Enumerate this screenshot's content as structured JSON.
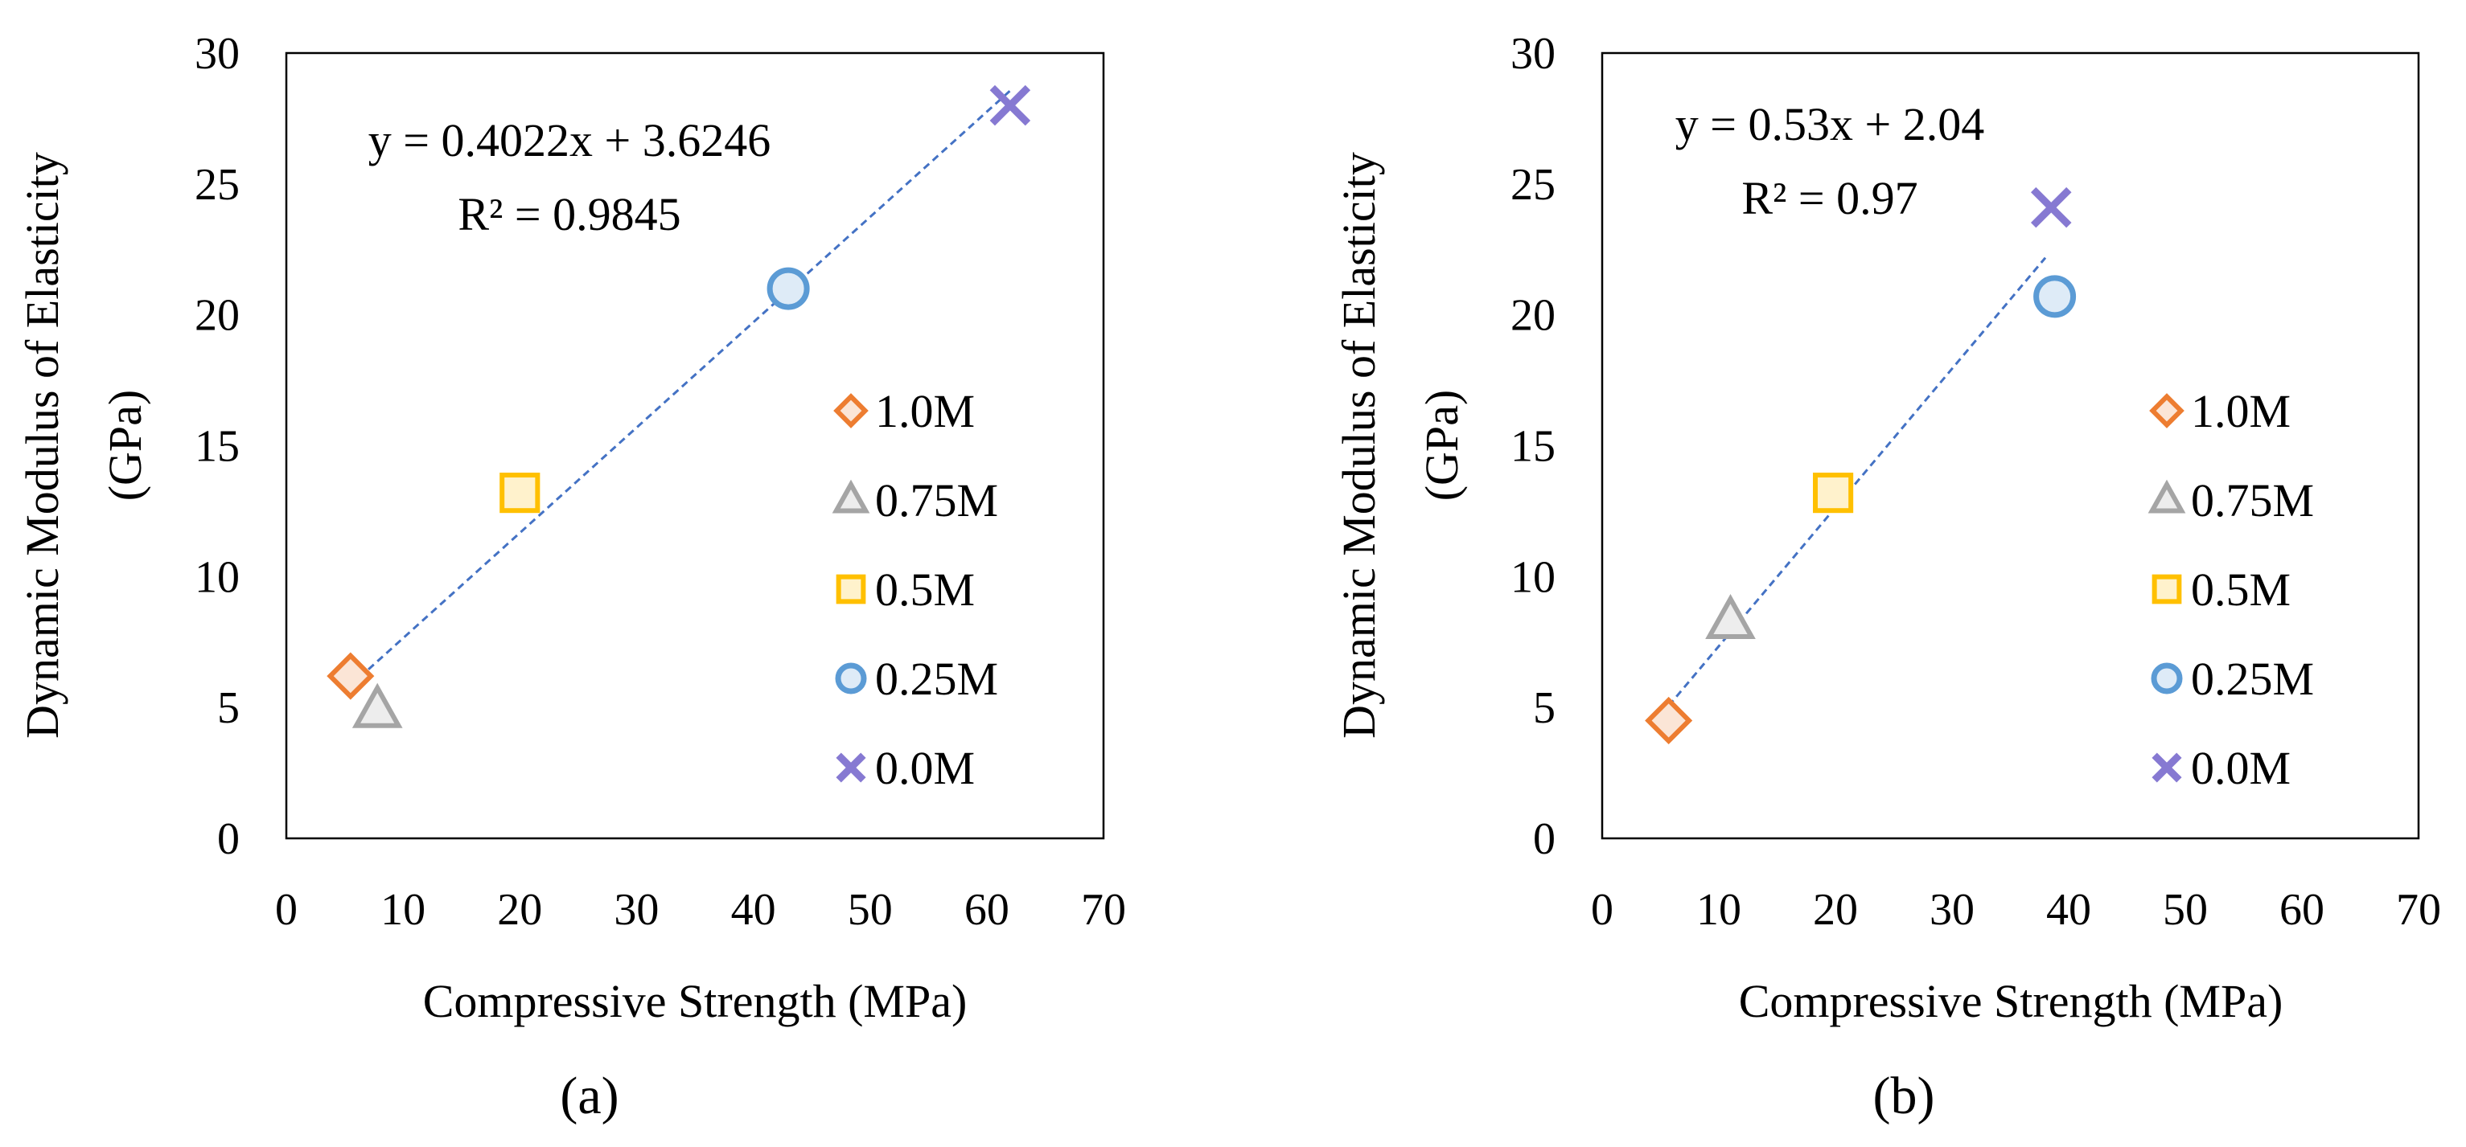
{
  "colors": {
    "1.0M": "#ED7D31",
    "0.75M": "#A5A5A5",
    "0.5M": "#FFC000",
    "0.25M": "#5B9BD5",
    "0.0M": "#8679D2",
    "trendline": "#4472C4",
    "axis": "#000000",
    "background": "#FFFFFF"
  },
  "chart_data": [
    {
      "type": "scatter",
      "panel_label": "(a)",
      "xlabel": "Compressive Strength (MPa)",
      "ylabel_line1": "Dynamic Modulus of Elasticity",
      "ylabel_line2": "(GPa)",
      "xlim": [
        0,
        70
      ],
      "ylim": [
        0,
        30
      ],
      "xticks": [
        0,
        10,
        20,
        30,
        40,
        50,
        60,
        70
      ],
      "yticks": [
        0,
        5,
        10,
        15,
        20,
        25,
        30
      ],
      "grid": false,
      "legend_position": "right",
      "series": [
        {
          "name": "1.0M",
          "marker": "diamond",
          "x": 5.5,
          "y": 6.2
        },
        {
          "name": "0.75M",
          "marker": "triangle",
          "x": 7.8,
          "y": 4.9
        },
        {
          "name": "0.5M",
          "marker": "square",
          "x": 20.0,
          "y": 13.2
        },
        {
          "name": "0.25M",
          "marker": "circle",
          "x": 43.0,
          "y": 21.0
        },
        {
          "name": "0.0M",
          "marker": "x",
          "x": 62.0,
          "y": 28.0
        }
      ],
      "trendline": {
        "type": "linear",
        "x_range": [
          5.5,
          62.0
        ],
        "slope": 0.4022,
        "intercept": 3.6246
      },
      "equation": "y = 0.4022x + 3.6246",
      "r_squared": "R² = 0.9845"
    },
    {
      "type": "scatter",
      "panel_label": "(b)",
      "xlabel": "Compressive Strength (MPa)",
      "ylabel_line1": "Dynamic Modulus of Elasticity",
      "ylabel_line2": "(GPa)",
      "xlim": [
        0,
        70
      ],
      "ylim": [
        0,
        30
      ],
      "xticks": [
        0,
        10,
        20,
        30,
        40,
        50,
        60,
        70
      ],
      "yticks": [
        0,
        5,
        10,
        15,
        20,
        25,
        30
      ],
      "grid": false,
      "legend_position": "right",
      "series": [
        {
          "name": "1.0M",
          "marker": "diamond",
          "x": 5.7,
          "y": 4.5
        },
        {
          "name": "0.75M",
          "marker": "triangle",
          "x": 11.0,
          "y": 8.3
        },
        {
          "name": "0.5M",
          "marker": "square",
          "x": 19.8,
          "y": 13.2
        },
        {
          "name": "0.25M",
          "marker": "circle",
          "x": 38.8,
          "y": 20.7
        },
        {
          "name": "0.0M",
          "marker": "x",
          "x": 38.5,
          "y": 24.1
        }
      ],
      "trendline": {
        "type": "linear",
        "x_range": [
          5.7,
          38.0
        ],
        "slope": 0.53,
        "intercept": 2.04
      },
      "equation": "y = 0.53x + 2.04",
      "r_squared": "R² = 0.97"
    }
  ]
}
